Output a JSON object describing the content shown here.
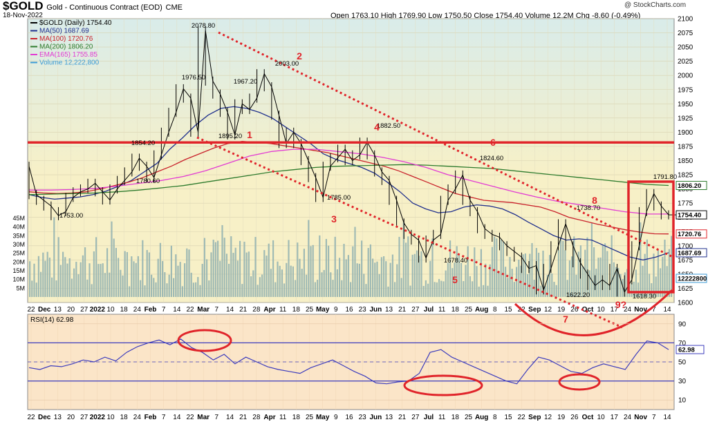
{
  "header": {
    "symbol": "$GOLD",
    "name": "Gold - Continuous Contract (EOD)",
    "exchange": "CME",
    "date": "18-Nov-2022",
    "watermark": "@ StockCharts.com",
    "ohlc": "Open 1763.10  High 1769.90  Low 1750.50  Close 1754.40  Volume 12.2M  Chg -8.60 (-0.49%)"
  },
  "legend": [
    {
      "text": "$GOLD (Daily) 1754.40",
      "color": "#000000"
    },
    {
      "text": "MA(50) 1687.69",
      "color": "#1f2f8c"
    },
    {
      "text": "MA(100) 1720.76",
      "color": "#c8202a"
    },
    {
      "text": "MA(200) 1806.20",
      "color": "#2c7a2c"
    },
    {
      "text": "EMA(165) 1755.85",
      "color": "#e23ad3"
    },
    {
      "text": "Volume 12,222,800",
      "color": "#3c9bd6"
    }
  ],
  "chart_data": [
    {
      "type": "line",
      "title": "$GOLD (Daily) 1754.40",
      "x_tick_labels": [
        "22",
        "Dec",
        "13",
        "20",
        "27",
        "2022",
        "10",
        "18",
        "24",
        "Feb",
        "7",
        "14",
        "22",
        "Mar",
        "7",
        "14",
        "21",
        "28",
        "Apr",
        "11",
        "18",
        "25",
        "May",
        "9",
        "16",
        "23",
        "Jun",
        "13",
        "21",
        "27",
        "Jul",
        "11",
        "18",
        "25",
        "Aug",
        "8",
        "15",
        "22",
        "Sep",
        "12",
        "19",
        "26",
        "Oct",
        "10",
        "17",
        "24",
        "Nov",
        "7",
        "14"
      ],
      "y_tick_labels": [
        1600,
        1625,
        1650,
        1675,
        1700,
        1725,
        1750,
        1775,
        1800,
        1825,
        1850,
        1875,
        1900,
        1925,
        1950,
        1975,
        2000,
        2025,
        2050,
        2075,
        2100
      ],
      "ylim": [
        1600,
        2100
      ],
      "volume_tick_labels": [
        "5M",
        "10M",
        "15M",
        "20M",
        "25M",
        "30M",
        "35M",
        "40M",
        "45M"
      ],
      "series": [
        {
          "name": "$GOLD",
          "color": "#000000",
          "values": [
            1840,
            1790,
            1780,
            1770,
            1753,
            1760,
            1785,
            1795,
            1800,
            1810,
            1795,
            1780.6,
            1800,
            1815,
            1830,
            1854.2,
            1840,
            1820,
            1860,
            1900,
            1935,
            1976.5,
            1960,
            1900,
            2078.8,
            1990,
            1967.2,
            1935,
            1895.2,
            1950,
            1940,
            1960,
            2003,
            1980,
            1930,
            1880,
            1900,
            1880,
            1850,
            1820,
            1785,
            1840,
            1855,
            1870,
            1850,
            1860,
            1882.5,
            1860,
            1830,
            1815,
            1780,
            1740,
            1720,
            1710,
            1678.4,
            1710,
            1720,
            1780,
            1800,
            1824.6,
            1780,
            1760,
            1730,
            1720,
            1715,
            1700,
            1690,
            1680,
            1660,
            1665,
            1622.2,
            1660,
            1700,
            1738.7,
            1700,
            1670,
            1650,
            1630,
            1640,
            1630,
            1660,
            1618.3,
            1640,
            1700,
            1760,
            1791.8,
            1770,
            1754.4
          ]
        },
        {
          "name": "MA(50)",
          "color": "#1f2f8c",
          "values": [
            1790,
            1785,
            1782,
            1784,
            1786,
            1790,
            1796,
            1805,
            1815,
            1830,
            1845,
            1870,
            1890,
            1912,
            1930,
            1942,
            1945,
            1942,
            1935,
            1925,
            1910,
            1895,
            1880,
            1862,
            1852,
            1845,
            1838,
            1828,
            1812,
            1795,
            1775,
            1765,
            1758,
            1760,
            1768,
            1772,
            1770,
            1765,
            1755,
            1742,
            1730,
            1718,
            1710,
            1712,
            1710,
            1700,
            1690,
            1680,
            1675,
            1680,
            1687.7
          ]
        },
        {
          "name": "MA(100)",
          "color": "#c8202a",
          "values": [
            1795,
            1793,
            1792,
            1793,
            1795,
            1800,
            1806,
            1812,
            1820,
            1830,
            1840,
            1852,
            1862,
            1872,
            1880,
            1884,
            1882,
            1880,
            1876,
            1872,
            1868,
            1864,
            1858,
            1852,
            1846,
            1840,
            1832,
            1822,
            1812,
            1802,
            1792,
            1786,
            1780,
            1778,
            1776,
            1772,
            1768,
            1760,
            1750,
            1744,
            1738,
            1733,
            1728,
            1724,
            1721,
            1720.8
          ]
        },
        {
          "name": "MA(200)",
          "color": "#2c7a2c",
          "values": [
            1790,
            1791,
            1792,
            1793,
            1795,
            1798,
            1802,
            1806,
            1812,
            1818,
            1824,
            1830,
            1834,
            1838,
            1840,
            1841,
            1842,
            1843,
            1842,
            1840,
            1838,
            1836,
            1832,
            1828,
            1824,
            1820,
            1816,
            1812,
            1808,
            1806.2
          ]
        },
        {
          "name": "EMA(165)",
          "color": "#e23ad3",
          "values": [
            1798,
            1798,
            1799,
            1801,
            1805,
            1810,
            1815,
            1822,
            1832,
            1845,
            1858,
            1866,
            1870,
            1870,
            1866,
            1862,
            1856,
            1848,
            1838,
            1825,
            1815,
            1805,
            1795,
            1786,
            1778,
            1772,
            1766,
            1760,
            1756,
            1755.9
          ]
        }
      ]
    },
    {
      "type": "line",
      "title": "RSI(14) 62.98",
      "y_tick_labels": [
        10,
        30,
        50,
        70,
        90
      ],
      "ylim": [
        0,
        100
      ],
      "series": [
        {
          "name": "RSI(14)",
          "color": "#3b3bbd",
          "values": [
            44,
            42,
            46,
            45,
            48,
            52,
            50,
            55,
            51,
            60,
            66,
            70,
            73,
            68,
            74,
            65,
            60,
            52,
            58,
            48,
            55,
            50,
            45,
            42,
            40,
            38,
            44,
            48,
            52,
            46,
            40,
            35,
            28,
            27,
            29,
            30,
            38,
            60,
            63,
            55,
            50,
            45,
            40,
            35,
            30,
            27,
            42,
            55,
            52,
            46,
            40,
            38,
            44,
            48,
            45,
            42,
            58,
            72,
            70,
            62.98
          ]
        }
      ]
    }
  ],
  "annotations": {
    "price_labels": [
      "2078.80",
      "1976.50",
      "1967.20",
      "2003.00",
      "1895.20",
      "1854.20",
      "1780.60",
      "1753.00",
      "1785.00",
      "1882.50",
      "1824.60",
      "1678.40",
      "1738.70",
      "1622.20",
      "1618.30",
      "1791.80"
    ],
    "wave_labels": [
      "1",
      "2",
      "3",
      "4",
      "5",
      "6",
      "7",
      "8",
      "9?"
    ],
    "value_tags": [
      "1806.20",
      "1754.40",
      "1720.76",
      "1687.69",
      "12222800",
      "62.98"
    ]
  },
  "colors": {
    "price_bg": "#f7f0c7",
    "price_bg_top": "#d9ecea",
    "rsi_bg": "#fbe5c8",
    "volume": "#8fb0b0",
    "red": "#e0242a"
  }
}
